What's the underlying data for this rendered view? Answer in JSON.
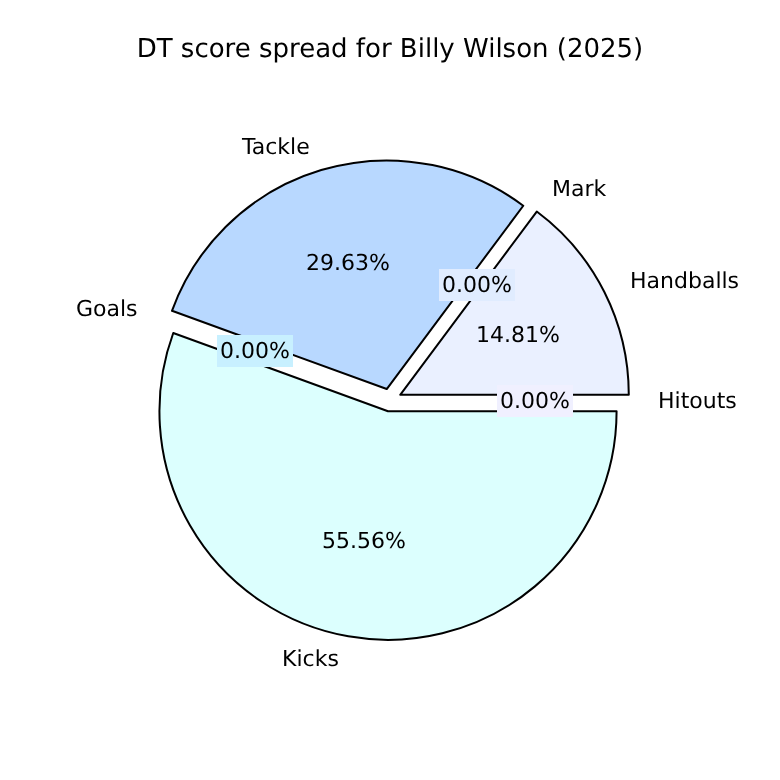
{
  "chart_data": {
    "type": "pie",
    "title": "DT score spread for Billy Wilson (2025)",
    "categories": [
      "Hitouts",
      "Handballs",
      "Mark",
      "Tackle",
      "Goals",
      "Kicks"
    ],
    "values": [
      0,
      14.81,
      0,
      29.63,
      0,
      55.56
    ],
    "colors": [
      "#f0f0ff",
      "#eaf0ff",
      "#e0ecff",
      "#b8d8ff",
      "#c8f0ff",
      "#dcfffe"
    ],
    "value_labels": [
      "0.00%",
      "14.81%",
      "0.00%",
      "29.63%",
      "0.00%",
      "55.56%"
    ]
  }
}
